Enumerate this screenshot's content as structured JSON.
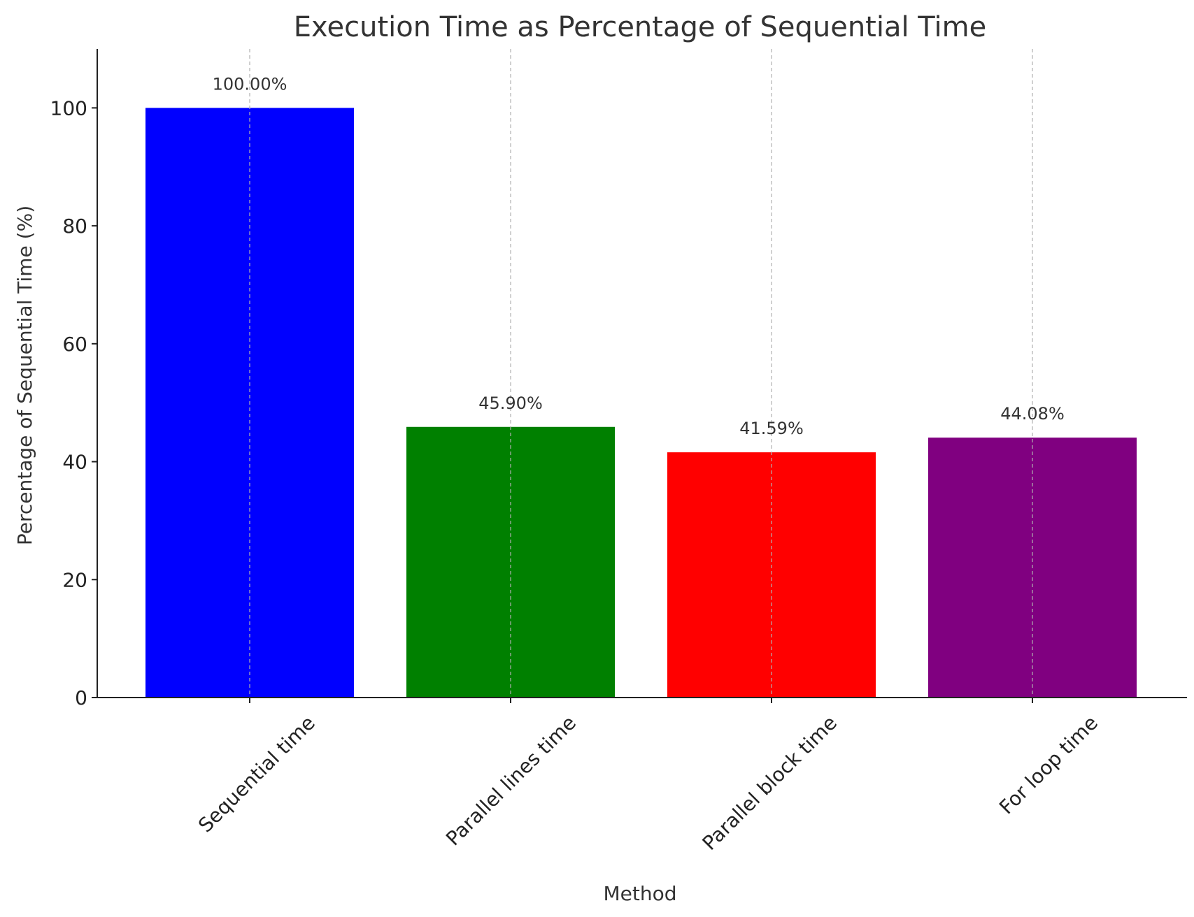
{
  "chart_data": {
    "type": "bar",
    "title": "Execution Time as Percentage of Sequential Time",
    "xlabel": "Method",
    "ylabel": "Percentage of Sequential Time (%)",
    "categories": [
      "Sequential time",
      "Parallel lines time",
      "Parallel block time",
      "For loop time"
    ],
    "values": [
      100.0,
      45.9,
      41.59,
      44.08
    ],
    "value_labels": [
      "100.00%",
      "45.90%",
      "41.59%",
      "44.08%"
    ],
    "colors": [
      "#0000ff",
      "#008000",
      "#ff0000",
      "#800080"
    ],
    "ylim": [
      0,
      110
    ],
    "yticks": [
      0,
      20,
      40,
      60,
      80,
      100
    ],
    "grid": "x-dashed",
    "legend": "none"
  }
}
